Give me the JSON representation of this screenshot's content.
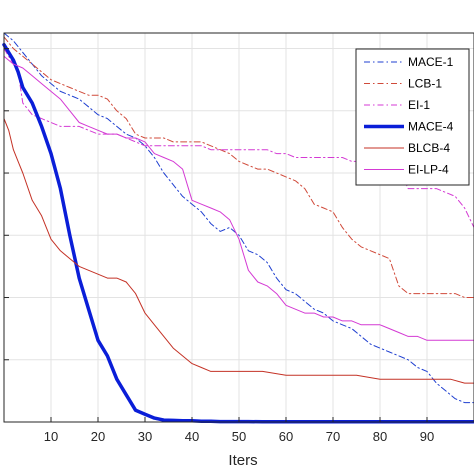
{
  "chart_data": {
    "type": "line",
    "title": "",
    "xlabel": "Iters",
    "ylabel": "",
    "xlim": [
      0,
      100
    ],
    "ylim": [
      0,
      100
    ],
    "xticks": [
      10,
      20,
      30,
      40,
      50,
      60,
      70,
      80,
      90
    ],
    "grid": true,
    "legend_position": "top-right",
    "series": [
      {
        "name": "MACE-1",
        "color": "#1f3fd0",
        "dash": "dashdot",
        "width": 1,
        "x": [
          0,
          2,
          4,
          6,
          8,
          10,
          12,
          14,
          16,
          18,
          20,
          22,
          24,
          26,
          28,
          30,
          32,
          34,
          36,
          38,
          40,
          42,
          44,
          46,
          48,
          50,
          52,
          54,
          56,
          58,
          60,
          62,
          64,
          66,
          68,
          70,
          72,
          74,
          76,
          78,
          80,
          82,
          84,
          86,
          88,
          90,
          92,
          94,
          96,
          98,
          100
        ],
        "y": [
          100,
          98,
          95,
          92,
          89,
          87,
          85,
          84,
          83,
          81,
          79,
          78,
          76,
          74,
          73,
          71,
          68,
          64,
          61,
          58,
          56,
          54,
          51,
          49,
          50,
          48,
          44,
          43,
          41,
          37,
          34,
          33,
          31,
          29,
          28,
          26,
          25,
          24,
          22,
          20,
          19,
          18,
          17,
          16,
          14,
          13,
          10,
          8,
          6,
          5,
          5
        ]
      },
      {
        "name": "LCB-1",
        "color": "#d04a3a",
        "dash": "dashdot",
        "width": 1,
        "x": [
          0,
          2,
          4,
          6,
          8,
          10,
          12,
          14,
          16,
          18,
          20,
          22,
          24,
          26,
          28,
          30,
          32,
          34,
          36,
          38,
          40,
          42,
          44,
          46,
          48,
          50,
          52,
          54,
          56,
          58,
          60,
          62,
          64,
          66,
          68,
          70,
          72,
          74,
          76,
          78,
          80,
          82,
          84,
          86,
          88,
          90,
          92,
          94,
          96,
          98,
          100
        ],
        "y": [
          99,
          96,
          94,
          92,
          90,
          88,
          87,
          86,
          85,
          84,
          84,
          83,
          80,
          78,
          74,
          73,
          73,
          73,
          72,
          72,
          72,
          72,
          71,
          70,
          69,
          67,
          66,
          65,
          65,
          64,
          63,
          62,
          60,
          56,
          55,
          54,
          50,
          47,
          45,
          44,
          43,
          42,
          35,
          33,
          33,
          33,
          33,
          33,
          33,
          32,
          32
        ]
      },
      {
        "name": "EI-1",
        "color": "#d43ad4",
        "dash": "dashdot",
        "width": 1,
        "x": [
          0,
          1,
          2,
          3,
          4,
          6,
          8,
          10,
          12,
          14,
          16,
          18,
          20,
          22,
          24,
          26,
          28,
          30,
          32,
          34,
          36,
          38,
          40,
          42,
          44,
          46,
          48,
          50,
          52,
          54,
          56,
          58,
          60,
          62,
          64,
          66,
          68,
          70,
          72,
          74,
          76,
          78,
          80,
          82,
          84,
          86,
          88,
          90,
          92,
          94,
          96,
          98,
          100
        ],
        "y": [
          96,
          94,
          92,
          90,
          82,
          79,
          78,
          77,
          76,
          76,
          76,
          75,
          74,
          74,
          74,
          73,
          72,
          71,
          71,
          71,
          71,
          71,
          71,
          71,
          70,
          70,
          70,
          70,
          70,
          70,
          70,
          69,
          69,
          68,
          68,
          68,
          68,
          68,
          68,
          67,
          67,
          66,
          66,
          65,
          65,
          60,
          60,
          60,
          60,
          59,
          58,
          55,
          50
        ]
      },
      {
        "name": "MACE-4",
        "color": "#0a1ed8",
        "dash": "solid",
        "width": 3.5,
        "x": [
          0,
          1,
          2,
          3,
          4,
          6,
          8,
          10,
          12,
          14,
          16,
          18,
          20,
          22,
          24,
          26,
          28,
          30,
          32,
          34,
          36,
          38,
          40,
          42,
          44,
          46,
          48,
          50,
          52,
          55,
          60,
          65,
          70,
          75,
          80,
          85,
          90,
          95,
          100
        ],
        "y": [
          97,
          95,
          93,
          90,
          86,
          82,
          76,
          69,
          60,
          48,
          37,
          29,
          21,
          17,
          11,
          7,
          3,
          2,
          1,
          0.5,
          0.4,
          0.3,
          0.3,
          0.2,
          0.2,
          0.1,
          0.1,
          0.1,
          0.1,
          0.05,
          0.05,
          0.05,
          0.05,
          0.05,
          0.05,
          0.05,
          0.05,
          0.05,
          0.05
        ]
      },
      {
        "name": "BLCB-4",
        "color": "#c43226",
        "dash": "solid",
        "width": 1,
        "x": [
          0,
          1,
          2,
          3,
          4,
          6,
          8,
          10,
          12,
          14,
          16,
          18,
          20,
          22,
          24,
          26,
          28,
          30,
          32,
          34,
          36,
          38,
          40,
          42,
          44,
          46,
          48,
          50,
          55,
          60,
          65,
          70,
          75,
          80,
          85,
          90,
          95,
          98,
          100
        ],
        "y": [
          78,
          75,
          70,
          67,
          64,
          57,
          53,
          47,
          44,
          42,
          40,
          39,
          38,
          37,
          37,
          36,
          33,
          28,
          25,
          22,
          19,
          17,
          15,
          14,
          13,
          13,
          13,
          13,
          13,
          12,
          12,
          12,
          12,
          11,
          11,
          11,
          11,
          10,
          10
        ]
      },
      {
        "name": "EI-LP-4",
        "color": "#d43ad4",
        "dash": "solid",
        "width": 1,
        "x": [
          0,
          1,
          2,
          4,
          6,
          8,
          10,
          12,
          14,
          16,
          18,
          20,
          22,
          24,
          26,
          28,
          30,
          32,
          34,
          36,
          38,
          40,
          42,
          44,
          46,
          48,
          50,
          52,
          54,
          56,
          58,
          60,
          62,
          64,
          66,
          68,
          70,
          72,
          74,
          76,
          78,
          80,
          82,
          84,
          86,
          88,
          90,
          92,
          94,
          96,
          98,
          100
        ],
        "y": [
          94,
          93,
          92,
          91,
          89,
          87,
          85,
          83,
          80,
          77,
          76,
          75,
          74,
          74,
          73,
          73,
          72,
          69,
          68,
          67,
          65,
          57,
          56,
          55,
          54,
          52,
          47,
          39,
          36,
          35,
          33,
          30,
          29,
          28,
          28,
          27,
          27,
          26,
          26,
          25,
          25,
          25,
          24,
          23,
          22,
          22,
          21,
          21,
          21,
          21,
          21,
          21
        ]
      }
    ]
  }
}
